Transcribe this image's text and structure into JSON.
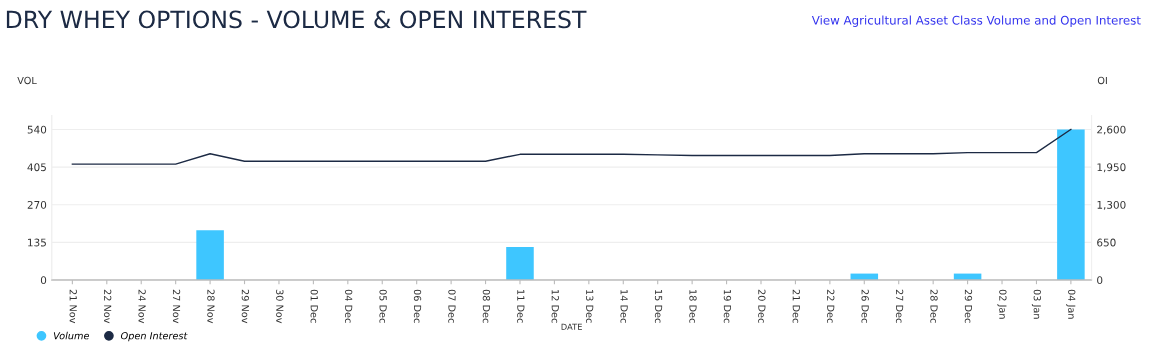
{
  "chart_data": {
    "type": "bar",
    "title": "DRY WHEY OPTIONS - VOLUME & OPEN INTEREST",
    "annotations": [
      "View Agricultural Asset Class Volume and Open Interest"
    ],
    "xlabel": "DATE",
    "ylabel": "VOL",
    "y2label": "OI",
    "categories": [
      "21 Nov",
      "22 Nov",
      "24 Nov",
      "27 Nov",
      "28 Nov",
      "29 Nov",
      "30 Nov",
      "01 Dec",
      "04 Dec",
      "05 Dec",
      "06 Dec",
      "07 Dec",
      "08 Dec",
      "11 Dec",
      "12 Dec",
      "13 Dec",
      "14 Dec",
      "15 Dec",
      "18 Dec",
      "19 Dec",
      "20 Dec",
      "21 Dec",
      "22 Dec",
      "26 Dec",
      "27 Dec",
      "28 Dec",
      "29 Dec",
      "02 Jan",
      "03 Jan",
      "04 Jan"
    ],
    "series": [
      {
        "name": "Volume",
        "color": "#3ec6ff",
        "values": [
          0,
          0,
          0,
          0,
          178,
          0,
          0,
          0,
          0,
          0,
          0,
          0,
          0,
          118,
          0,
          0,
          0,
          0,
          0,
          0,
          0,
          0,
          0,
          23,
          0,
          0,
          23,
          0,
          0,
          540
        ]
      },
      {
        "name": "Open Interest",
        "type": "line",
        "axis": "y2",
        "color": "#1c2a44",
        "values": [
          2000,
          2000,
          2000,
          2000,
          2180,
          2050,
          2050,
          2050,
          2050,
          2050,
          2050,
          2050,
          2050,
          2170,
          2170,
          2170,
          2170,
          2160,
          2150,
          2150,
          2150,
          2150,
          2150,
          2180,
          2180,
          2180,
          2200,
          2200,
          2200,
          2600
        ]
      }
    ],
    "ylim": [
      0,
      590
    ],
    "yticks": [
      0,
      135,
      270,
      405,
      540
    ],
    "y2lim": [
      0,
      2840
    ],
    "y2ticks": [
      0,
      {
        "value": 650,
        "label": "650"
      },
      {
        "value": 1300,
        "label": "1,300"
      },
      {
        "value": 1950,
        "label": "1,950"
      },
      {
        "value": 2600,
        "label": "2,600"
      }
    ],
    "grid": "y",
    "legend": "bottom left",
    "marker": "none"
  }
}
